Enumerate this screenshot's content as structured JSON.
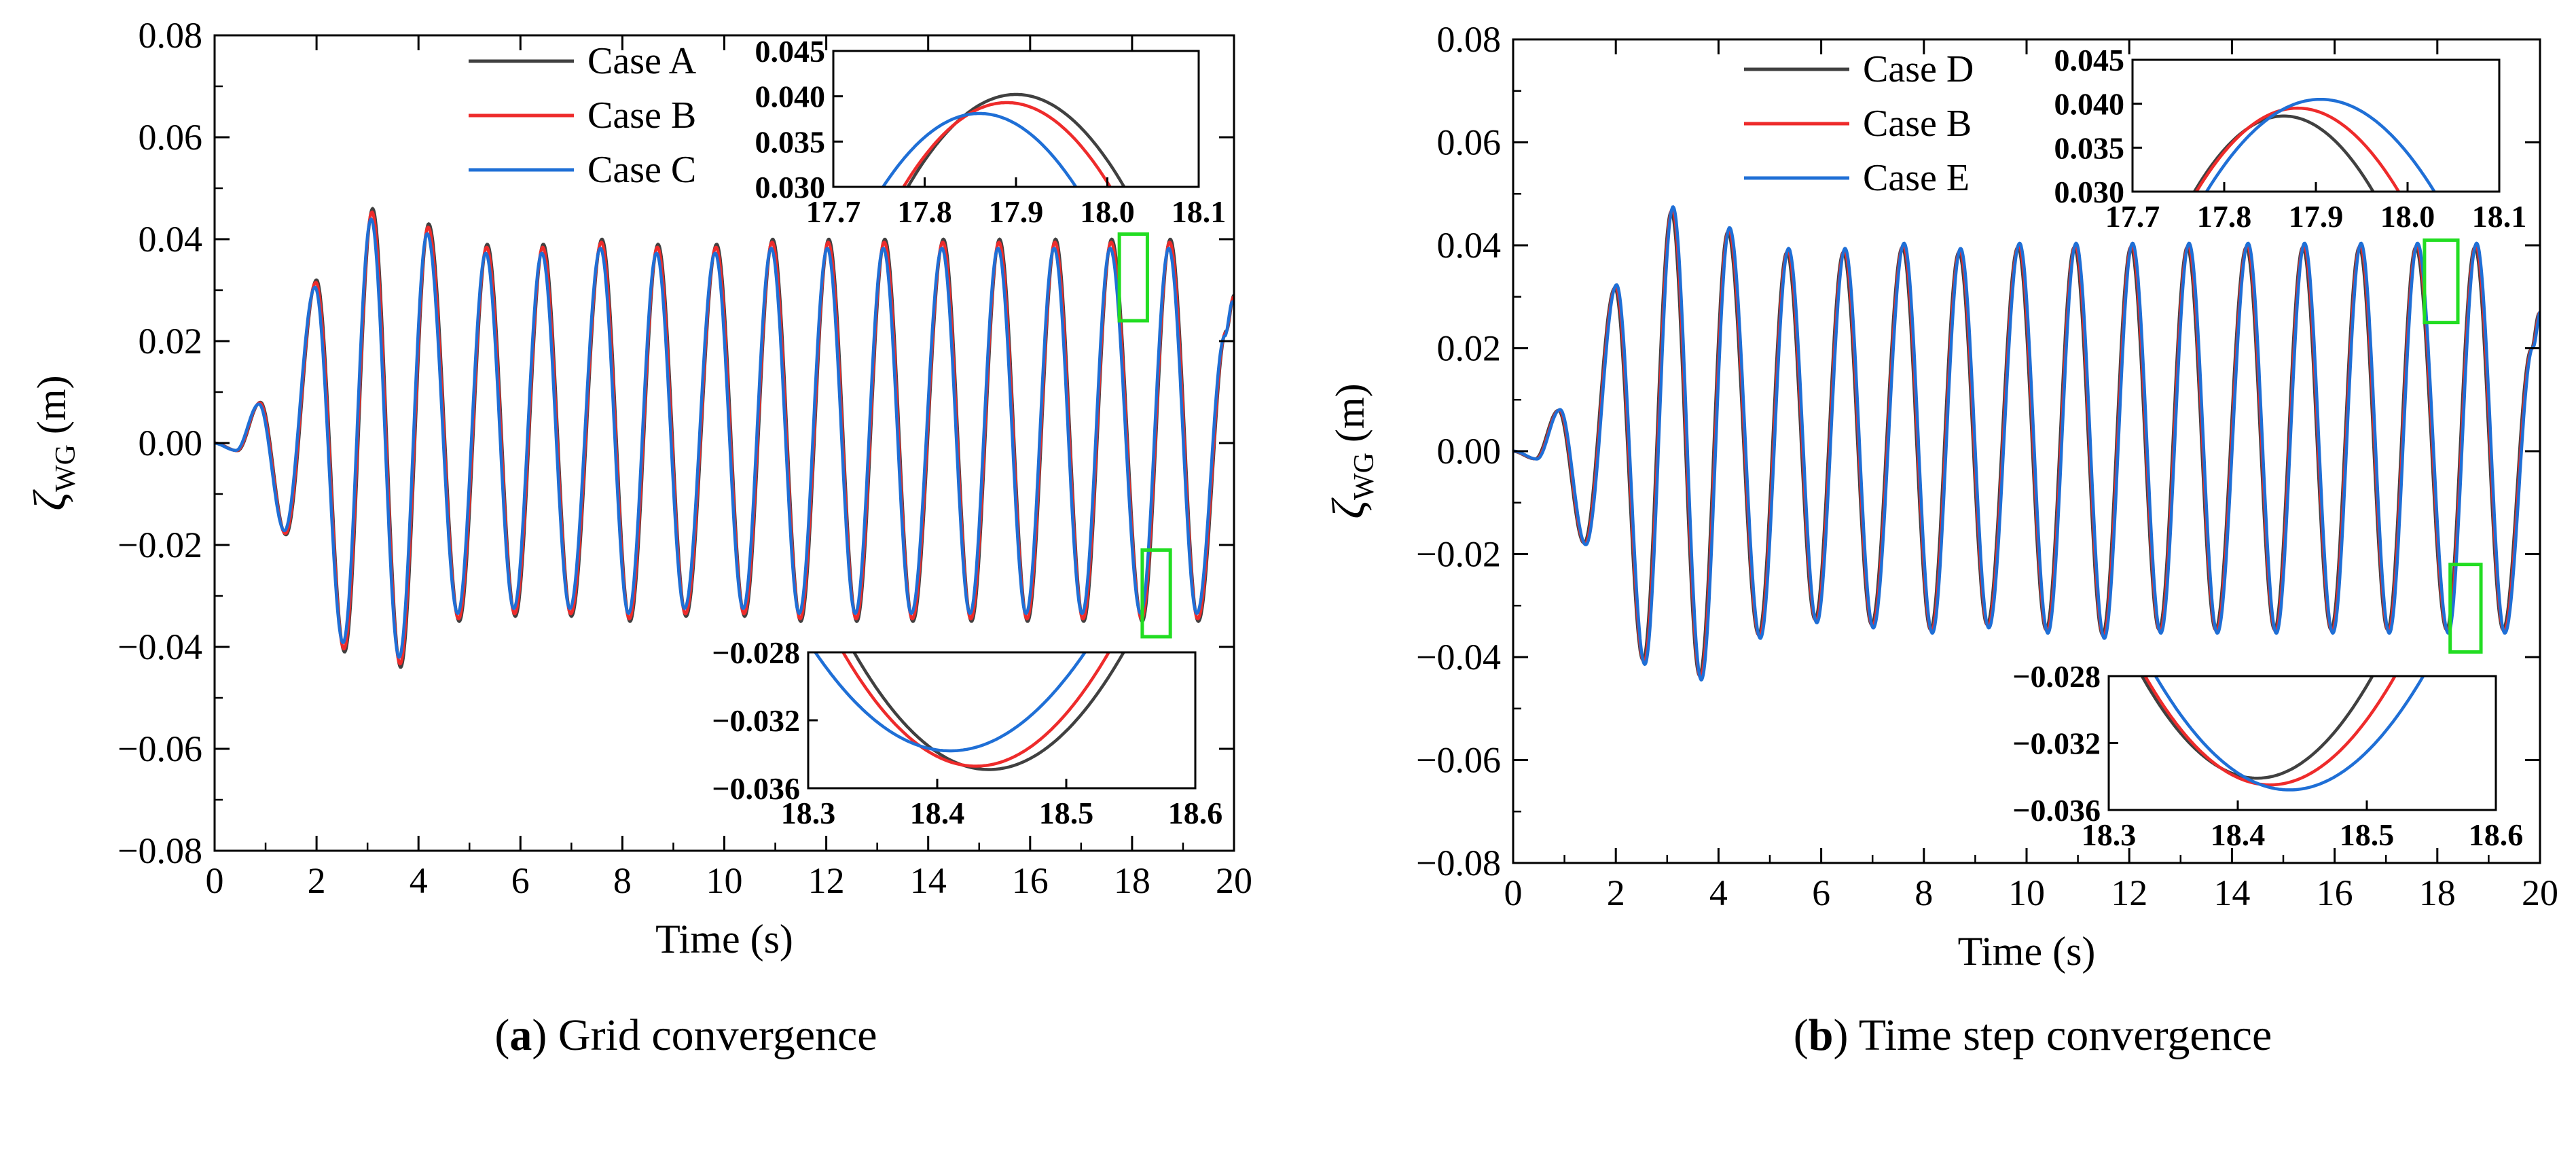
{
  "colors": {
    "case_gray": "#404040",
    "case_red": "#ee2b2b",
    "case_blue": "#1f6fd6",
    "highlight_box": "#22dd22",
    "axis": "#000000"
  },
  "captions": [
    {
      "letter": "a",
      "open": "(",
      "close": ")",
      "text": " Grid convergence"
    },
    {
      "letter": "b",
      "open": "(",
      "close": ")",
      "text": " Time step convergence"
    }
  ],
  "chart_data": [
    {
      "type": "line",
      "panel": "a",
      "xlabel": "Time (s)",
      "ylabel": {
        "symbol": "ζ",
        "subscript": "WG",
        "unit": " (m)"
      },
      "xlim": [
        0,
        20
      ],
      "ylim": [
        -0.08,
        0.08
      ],
      "xticks": [
        "0",
        "2",
        "4",
        "6",
        "8",
        "10",
        "12",
        "14",
        "16",
        "18",
        "20"
      ],
      "yticks": [
        "−0.08",
        "−0.06",
        "−0.04",
        "−0.02",
        "0.00",
        "0.02",
        "0.04",
        "0.06",
        "0.08"
      ],
      "legend": [
        "Case A",
        "Case B",
        "Case C"
      ],
      "legend_position": "top-center",
      "series": [
        {
          "name": "Case A",
          "color": "#404040",
          "amp_scale": 1.0,
          "phase_shift": 0.0
        },
        {
          "name": "Case B",
          "color": "#ee2b2b",
          "amp_scale": 0.985,
          "phase_shift": -0.012
        },
        {
          "name": "Case C",
          "color": "#1f6fd6",
          "amp_scale": 0.955,
          "phase_shift": -0.03
        }
      ],
      "peaks": [
        {
          "t": 0.0,
          "v": 0.0
        },
        {
          "t": 0.45,
          "v": -0.0015
        },
        {
          "t": 0.9,
          "v": 0.008
        },
        {
          "t": 1.4,
          "v": -0.018
        },
        {
          "t": 2.0,
          "v": 0.032
        },
        {
          "t": 2.55,
          "v": -0.041
        },
        {
          "t": 3.1,
          "v": 0.046
        },
        {
          "t": 3.65,
          "v": -0.044
        },
        {
          "t": 4.2,
          "v": 0.043
        },
        {
          "t": 4.8,
          "v": -0.035
        },
        {
          "t": 5.35,
          "v": 0.039
        },
        {
          "t": 5.9,
          "v": -0.034
        },
        {
          "t": 6.45,
          "v": 0.039
        },
        {
          "t": 7.0,
          "v": -0.034
        },
        {
          "t": 7.6,
          "v": 0.04
        },
        {
          "t": 8.15,
          "v": -0.035
        },
        {
          "t": 8.7,
          "v": 0.039
        },
        {
          "t": 9.25,
          "v": -0.034
        },
        {
          "t": 9.85,
          "v": 0.039
        },
        {
          "t": 10.4,
          "v": -0.034
        },
        {
          "t": 10.95,
          "v": 0.04
        },
        {
          "t": 11.5,
          "v": -0.035
        },
        {
          "t": 12.05,
          "v": 0.04
        },
        {
          "t": 12.6,
          "v": -0.035
        },
        {
          "t": 13.15,
          "v": 0.04
        },
        {
          "t": 13.7,
          "v": -0.035
        },
        {
          "t": 14.3,
          "v": 0.04
        },
        {
          "t": 14.85,
          "v": -0.035
        },
        {
          "t": 15.4,
          "v": 0.04
        },
        {
          "t": 15.95,
          "v": -0.035
        },
        {
          "t": 16.5,
          "v": 0.04
        },
        {
          "t": 17.05,
          "v": -0.035
        },
        {
          "t": 17.6,
          "v": 0.04
        },
        {
          "t": 18.2,
          "v": -0.035
        },
        {
          "t": 18.75,
          "v": 0.04
        },
        {
          "t": 19.3,
          "v": -0.035
        },
        {
          "t": 19.85,
          "v": 0.022
        },
        {
          "t": 20.0,
          "v": 0.029
        }
      ],
      "highlight_boxes": [
        {
          "t0": 17.75,
          "t1": 18.3,
          "v0": 0.024,
          "v1": 0.041
        },
        {
          "t0": 18.2,
          "t1": 18.75,
          "v0": -0.038,
          "v1": -0.021
        }
      ],
      "insets": [
        {
          "position": "top-right",
          "xlim": [
            17.7,
            18.1
          ],
          "ylim": [
            0.03,
            0.045
          ],
          "xticks": [
            "17.7",
            "17.8",
            "17.9",
            "18.0",
            "18.1"
          ],
          "yticks": [
            "0.030",
            "0.035",
            "0.040",
            "0.045"
          ],
          "curves": [
            {
              "name": "Case A",
              "color": "#404040",
              "center": 17.9,
              "peak": 0.0402,
              "width": 0.145
            },
            {
              "name": "Case B",
              "color": "#ee2b2b",
              "center": 17.89,
              "peak": 0.0393,
              "width": 0.145
            },
            {
              "name": "Case C",
              "color": "#1f6fd6",
              "center": 17.86,
              "peak": 0.0381,
              "width": 0.145
            }
          ]
        },
        {
          "position": "bottom-right",
          "xlim": [
            18.3,
            18.6
          ],
          "ylim": [
            -0.036,
            -0.028
          ],
          "xticks": [
            "18.3",
            "18.4",
            "18.5",
            "18.6"
          ],
          "yticks": [
            "−0.028",
            "−0.032",
            "−0.036"
          ],
          "curves": [
            {
              "name": "Case A",
              "color": "#404040",
              "center": 18.44,
              "peak": -0.0349,
              "width": 0.11
            },
            {
              "name": "Case B",
              "color": "#ee2b2b",
              "center": 18.43,
              "peak": -0.0347,
              "width": 0.11
            },
            {
              "name": "Case C",
              "color": "#1f6fd6",
              "center": 18.41,
              "peak": -0.0338,
              "width": 0.12
            }
          ]
        }
      ]
    },
    {
      "type": "line",
      "panel": "b",
      "xlabel": "Time (s)",
      "ylabel": {
        "symbol": "ζ",
        "subscript": "WG",
        "unit": " (m)"
      },
      "xlim": [
        0,
        20
      ],
      "ylim": [
        -0.08,
        0.08
      ],
      "xticks": [
        "0",
        "2",
        "4",
        "6",
        "8",
        "10",
        "12",
        "14",
        "16",
        "18",
        "20"
      ],
      "yticks": [
        "−0.08",
        "−0.06",
        "−0.04",
        "−0.02",
        "0.00",
        "0.02",
        "0.04",
        "0.06",
        "0.08"
      ],
      "legend": [
        "Case D",
        "Case B",
        "Case E"
      ],
      "legend_position": "top-center",
      "series": [
        {
          "name": "Case D",
          "color": "#404040",
          "amp_scale": 0.99,
          "phase_shift": -0.02
        },
        {
          "name": "Case B",
          "color": "#ee2b2b",
          "amp_scale": 1.0,
          "phase_shift": 0.0
        },
        {
          "name": "Case E",
          "color": "#1f6fd6",
          "amp_scale": 1.01,
          "phase_shift": 0.015
        }
      ],
      "peaks": [
        {
          "t": 0.0,
          "v": 0.0
        },
        {
          "t": 0.45,
          "v": -0.0015
        },
        {
          "t": 0.9,
          "v": 0.008
        },
        {
          "t": 1.4,
          "v": -0.018
        },
        {
          "t": 2.0,
          "v": 0.032
        },
        {
          "t": 2.55,
          "v": -0.041
        },
        {
          "t": 3.1,
          "v": 0.047
        },
        {
          "t": 3.65,
          "v": -0.044
        },
        {
          "t": 4.2,
          "v": 0.043
        },
        {
          "t": 4.8,
          "v": -0.036
        },
        {
          "t": 5.35,
          "v": 0.039
        },
        {
          "t": 5.9,
          "v": -0.033
        },
        {
          "t": 6.45,
          "v": 0.039
        },
        {
          "t": 7.0,
          "v": -0.034
        },
        {
          "t": 7.6,
          "v": 0.04
        },
        {
          "t": 8.15,
          "v": -0.035
        },
        {
          "t": 8.7,
          "v": 0.039
        },
        {
          "t": 9.25,
          "v": -0.034
        },
        {
          "t": 9.85,
          "v": 0.04
        },
        {
          "t": 10.4,
          "v": -0.035
        },
        {
          "t": 10.95,
          "v": 0.04
        },
        {
          "t": 11.5,
          "v": -0.036
        },
        {
          "t": 12.05,
          "v": 0.04
        },
        {
          "t": 12.6,
          "v": -0.035
        },
        {
          "t": 13.15,
          "v": 0.04
        },
        {
          "t": 13.7,
          "v": -0.035
        },
        {
          "t": 14.3,
          "v": 0.04
        },
        {
          "t": 14.85,
          "v": -0.035
        },
        {
          "t": 15.4,
          "v": 0.04
        },
        {
          "t": 15.95,
          "v": -0.035
        },
        {
          "t": 16.5,
          "v": 0.04
        },
        {
          "t": 17.05,
          "v": -0.035
        },
        {
          "t": 17.6,
          "v": 0.04
        },
        {
          "t": 18.2,
          "v": -0.035
        },
        {
          "t": 18.75,
          "v": 0.04
        },
        {
          "t": 19.3,
          "v": -0.035
        },
        {
          "t": 19.85,
          "v": 0.02
        },
        {
          "t": 20.0,
          "v": 0.027
        }
      ],
      "highlight_boxes": [
        {
          "t0": 17.75,
          "t1": 18.4,
          "v0": 0.025,
          "v1": 0.041
        },
        {
          "t0": 18.25,
          "t1": 18.85,
          "v0": -0.039,
          "v1": -0.022
        }
      ],
      "insets": [
        {
          "position": "top-right",
          "xlim": [
            17.7,
            18.1
          ],
          "ylim": [
            0.03,
            0.045
          ],
          "xticks": [
            "17.7",
            "17.8",
            "17.9",
            "18.0",
            "18.1"
          ],
          "yticks": [
            "0.030",
            "0.035",
            "0.040",
            "0.045"
          ],
          "curves": [
            {
              "name": "Case D",
              "color": "#404040",
              "center": 17.865,
              "peak": 0.0386,
              "width": 0.13
            },
            {
              "name": "Case B",
              "color": "#ee2b2b",
              "center": 17.88,
              "peak": 0.0395,
              "width": 0.14
            },
            {
              "name": "Case E",
              "color": "#1f6fd6",
              "center": 17.905,
              "peak": 0.0405,
              "width": 0.15
            }
          ]
        },
        {
          "position": "bottom-right",
          "xlim": [
            18.3,
            18.6
          ],
          "ylim": [
            -0.036,
            -0.028
          ],
          "xticks": [
            "18.3",
            "18.4",
            "18.5",
            "18.6"
          ],
          "yticks": [
            "−0.028",
            "−0.032",
            "−0.036"
          ],
          "curves": [
            {
              "name": "Case D",
              "color": "#404040",
              "center": 18.415,
              "peak": -0.0341,
              "width": 0.1
            },
            {
              "name": "Case B",
              "color": "#ee2b2b",
              "center": 18.425,
              "peak": -0.0345,
              "width": 0.105
            },
            {
              "name": "Case E",
              "color": "#1f6fd6",
              "center": 18.44,
              "peak": -0.0348,
              "width": 0.11
            }
          ]
        }
      ]
    }
  ]
}
